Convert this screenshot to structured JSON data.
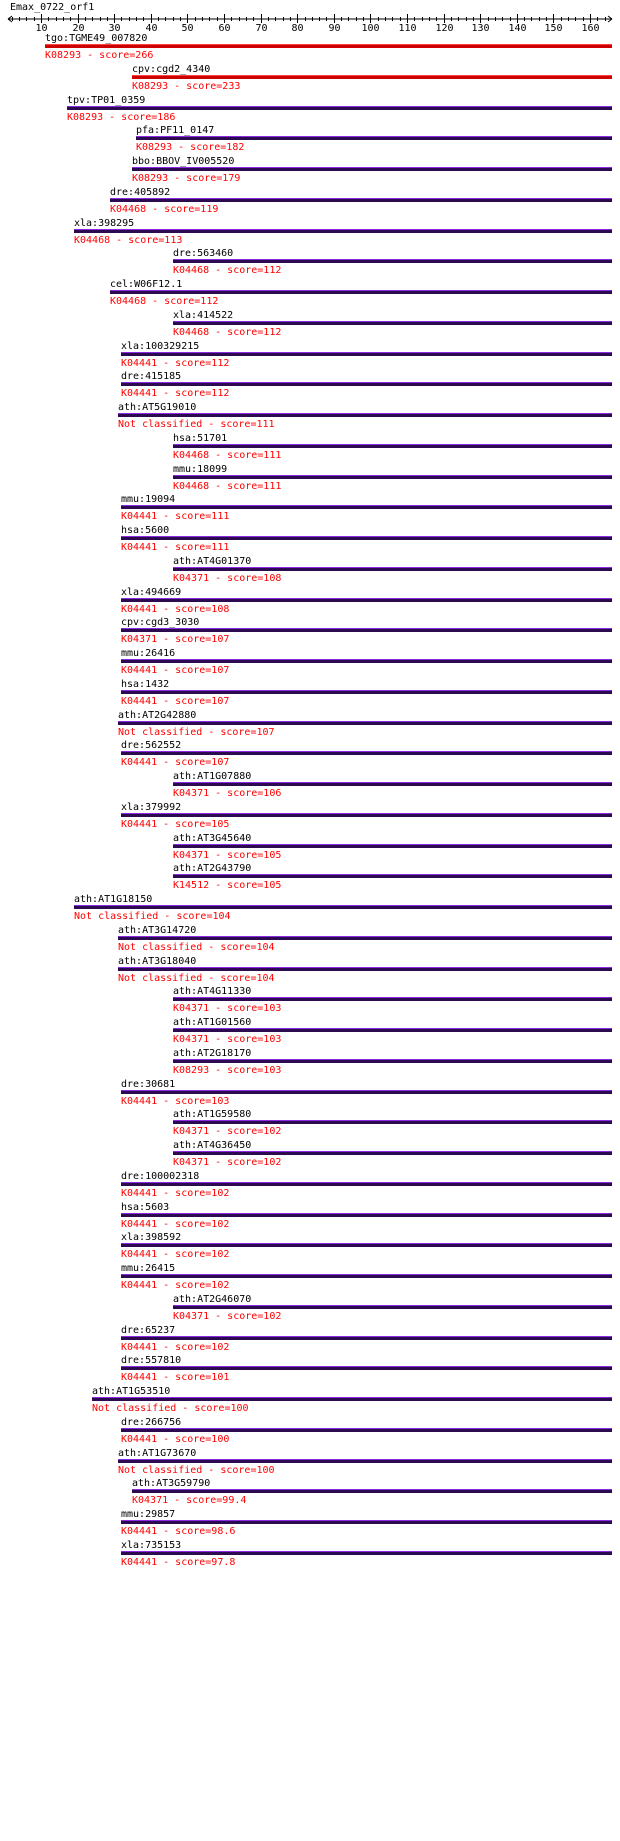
{
  "title": "Emax_0722_orf1",
  "ruler": {
    "start": 1,
    "end": 166,
    "ticks": [
      10,
      20,
      30,
      40,
      50,
      60,
      70,
      80,
      90,
      100,
      110,
      120,
      130,
      140,
      150,
      160
    ]
  },
  "colors": {
    "text": "#000000",
    "score_text": "#ff0000",
    "bar_top_hit": "#cc0000",
    "bar_other": "#2b0a4f",
    "bar_edge": "#8a2be2"
  },
  "hits": [
    {
      "name": "tgo:TGME49_007820",
      "score_label": "K08293 - score=266",
      "start": 11,
      "end": 166,
      "top": true
    },
    {
      "name": "cpv:cgd2_4340",
      "score_label": "K08293 - score=233",
      "start": 35,
      "end": 166,
      "top": true
    },
    {
      "name": "tpv:TP01_0359",
      "score_label": "K08293 - score=186",
      "start": 17,
      "end": 166
    },
    {
      "name": "pfa:PF11_0147",
      "score_label": "K08293 - score=182",
      "start": 36,
      "end": 166
    },
    {
      "name": "bbo:BBOV_IV005520",
      "score_label": "K08293 - score=179",
      "start": 35,
      "end": 166
    },
    {
      "name": "dre:405892",
      "score_label": "K04468 - score=119",
      "start": 29,
      "end": 166
    },
    {
      "name": "xla:398295",
      "score_label": "K04468 - score=113",
      "start": 19,
      "end": 166
    },
    {
      "name": "dre:563460",
      "score_label": "K04468 - score=112",
      "start": 46,
      "end": 166
    },
    {
      "name": "cel:W06F12.1",
      "score_label": "K04468 - score=112",
      "start": 29,
      "end": 166
    },
    {
      "name": "xla:414522",
      "score_label": "K04468 - score=112",
      "start": 46,
      "end": 166
    },
    {
      "name": "xla:100329215",
      "score_label": "K04441 - score=112",
      "start": 32,
      "end": 166
    },
    {
      "name": "dre:415185",
      "score_label": "K04441 - score=112",
      "start": 32,
      "end": 166
    },
    {
      "name": "ath:AT5G19010",
      "score_label": "Not classified - score=111",
      "start": 31,
      "end": 166
    },
    {
      "name": "hsa:51701",
      "score_label": "K04468 - score=111",
      "start": 46,
      "end": 166
    },
    {
      "name": "mmu:18099",
      "score_label": "K04468 - score=111",
      "start": 46,
      "end": 166
    },
    {
      "name": "mmu:19094",
      "score_label": "K04441 - score=111",
      "start": 32,
      "end": 166
    },
    {
      "name": "hsa:5600",
      "score_label": "K04441 - score=111",
      "start": 32,
      "end": 166
    },
    {
      "name": "ath:AT4G01370",
      "score_label": "K04371 - score=108",
      "start": 46,
      "end": 166
    },
    {
      "name": "xla:494669",
      "score_label": "K04441 - score=108",
      "start": 32,
      "end": 166
    },
    {
      "name": "cpv:cgd3_3030",
      "score_label": "K04371 - score=107",
      "start": 32,
      "end": 166
    },
    {
      "name": "mmu:26416",
      "score_label": "K04441 - score=107",
      "start": 32,
      "end": 166
    },
    {
      "name": "hsa:1432",
      "score_label": "K04441 - score=107",
      "start": 32,
      "end": 166
    },
    {
      "name": "ath:AT2G42880",
      "score_label": "Not classified - score=107",
      "start": 31,
      "end": 166
    },
    {
      "name": "dre:562552",
      "score_label": "K04441 - score=107",
      "start": 32,
      "end": 166
    },
    {
      "name": "ath:AT1G07880",
      "score_label": "K04371 - score=106",
      "start": 46,
      "end": 166
    },
    {
      "name": "xla:379992",
      "score_label": "K04441 - score=105",
      "start": 32,
      "end": 166
    },
    {
      "name": "ath:AT3G45640",
      "score_label": "K04371 - score=105",
      "start": 46,
      "end": 166
    },
    {
      "name": "ath:AT2G43790",
      "score_label": "K14512 - score=105",
      "start": 46,
      "end": 166
    },
    {
      "name": "ath:AT1G18150",
      "score_label": "Not classified - score=104",
      "start": 19,
      "end": 166
    },
    {
      "name": "ath:AT3G14720",
      "score_label": "Not classified - score=104",
      "start": 31,
      "end": 166
    },
    {
      "name": "ath:AT3G18040",
      "score_label": "Not classified - score=104",
      "start": 31,
      "end": 166
    },
    {
      "name": "ath:AT4G11330",
      "score_label": "K04371 - score=103",
      "start": 46,
      "end": 166
    },
    {
      "name": "ath:AT1G01560",
      "score_label": "K04371 - score=103",
      "start": 46,
      "end": 166
    },
    {
      "name": "ath:AT2G18170",
      "score_label": "K08293 - score=103",
      "start": 46,
      "end": 166
    },
    {
      "name": "dre:30681",
      "score_label": "K04441 - score=103",
      "start": 32,
      "end": 166
    },
    {
      "name": "ath:AT1G59580",
      "score_label": "K04371 - score=102",
      "start": 46,
      "end": 166
    },
    {
      "name": "ath:AT4G36450",
      "score_label": "K04371 - score=102",
      "start": 46,
      "end": 166
    },
    {
      "name": "dre:100002318",
      "score_label": "K04441 - score=102",
      "start": 32,
      "end": 166
    },
    {
      "name": "hsa:5603",
      "score_label": "K04441 - score=102",
      "start": 32,
      "end": 166
    },
    {
      "name": "xla:398592",
      "score_label": "K04441 - score=102",
      "start": 32,
      "end": 166
    },
    {
      "name": "mmu:26415",
      "score_label": "K04441 - score=102",
      "start": 32,
      "end": 166
    },
    {
      "name": "ath:AT2G46070",
      "score_label": "K04371 - score=102",
      "start": 46,
      "end": 166
    },
    {
      "name": "dre:65237",
      "score_label": "K04441 - score=102",
      "start": 32,
      "end": 166
    },
    {
      "name": "dre:557810",
      "score_label": "K04441 - score=101",
      "start": 32,
      "end": 166
    },
    {
      "name": "ath:AT1G53510",
      "score_label": "Not classified - score=100",
      "start": 24,
      "end": 166
    },
    {
      "name": "dre:266756",
      "score_label": "K04441 - score=100",
      "start": 32,
      "end": 166
    },
    {
      "name": "ath:AT1G73670",
      "score_label": "Not classified - score=100",
      "start": 31,
      "end": 166
    },
    {
      "name": "ath:AT3G59790",
      "score_label": "K04371 - score=99.4",
      "start": 35,
      "end": 166
    },
    {
      "name": "mmu:29857",
      "score_label": "K04441 - score=98.6",
      "start": 32,
      "end": 166
    },
    {
      "name": "xla:735153",
      "score_label": "K04441 - score=97.8",
      "start": 32,
      "end": 166
    }
  ]
}
